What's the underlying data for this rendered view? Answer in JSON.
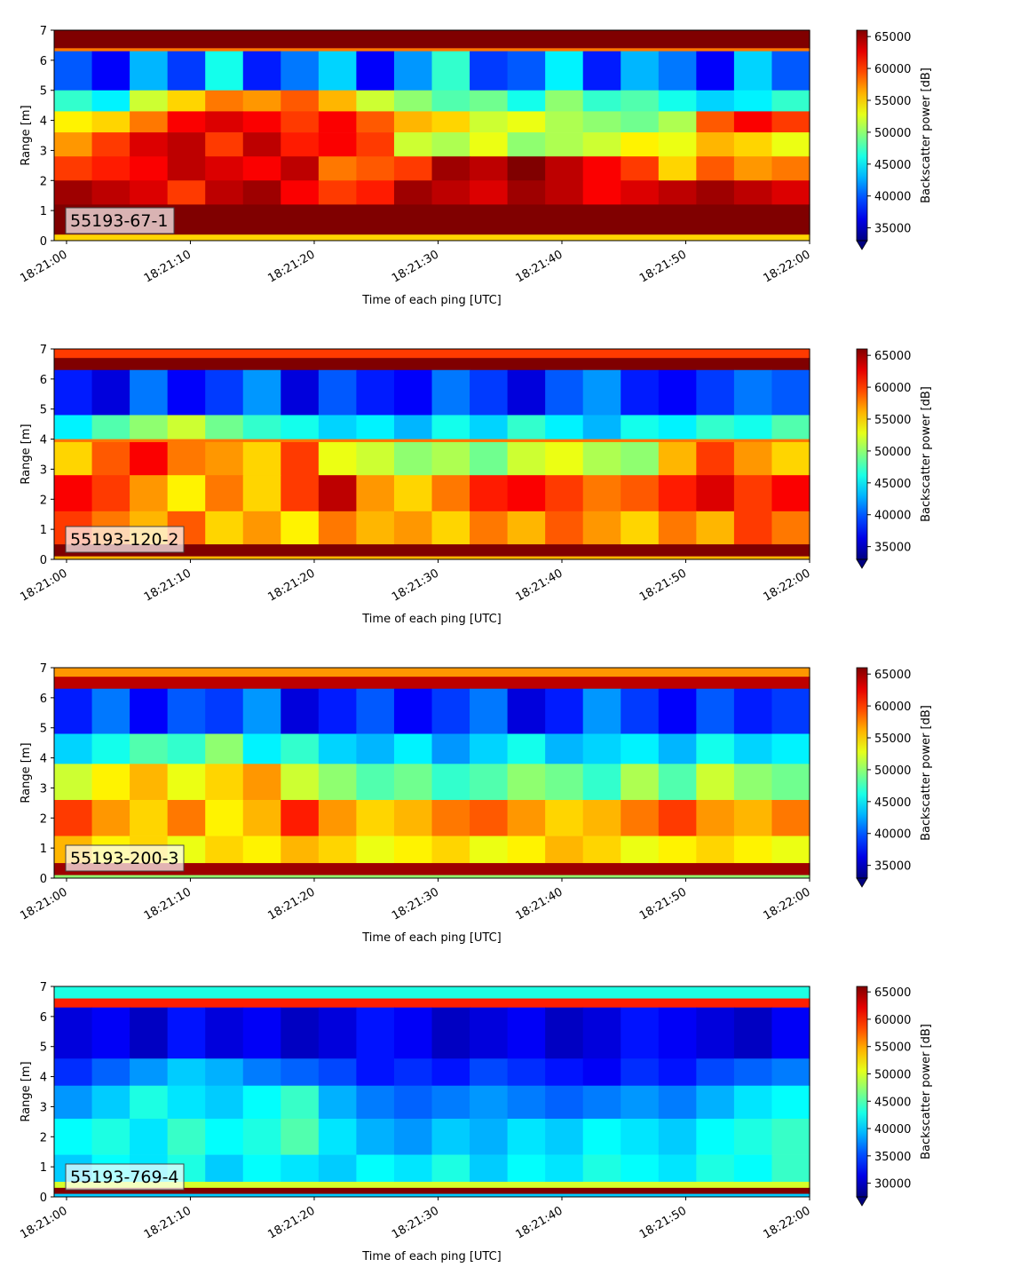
{
  "chart_data": [
    {
      "type": "heatmap",
      "label": "55193-67-1",
      "xlabel": "Time of each ping [UTC]",
      "ylabel": "Range [m]",
      "xticks": [
        "18:21:00",
        "18:21:10",
        "18:21:20",
        "18:21:30",
        "18:21:40",
        "18:21:50",
        "18:22:00"
      ],
      "x_range": [
        "18:20:59",
        "18:22:00"
      ],
      "yticks": [
        0,
        1,
        2,
        3,
        4,
        5,
        6,
        7
      ],
      "ylim": [
        0,
        7
      ],
      "colorbar": {
        "label": "Backscatter power [dB]",
        "ticks": [
          35000,
          40000,
          45000,
          50000,
          55000,
          60000,
          65000
        ],
        "vmin": 33000,
        "vmax": 66000,
        "colormap": "jet"
      },
      "rows": [
        {
          "range": [
            6.4,
            7.0
          ],
          "values": [
            66000
          ]
        },
        {
          "range": [
            6.3,
            6.4
          ],
          "values": [
            58000
          ]
        },
        {
          "range": [
            5.0,
            6.3
          ],
          "values": [
            40000,
            37000,
            43000,
            39000,
            46000,
            38000,
            41000,
            44000,
            37000,
            42000,
            47000,
            39000,
            40000,
            45000,
            38000,
            43000,
            41000,
            37000,
            44000,
            40000
          ]
        },
        {
          "range": [
            4.3,
            5.0
          ],
          "values": [
            47000,
            45000,
            52000,
            55000,
            58000,
            57000,
            59000,
            56000,
            52000,
            50000,
            48000,
            49000,
            46000,
            50000,
            47000,
            48000,
            46000,
            44000,
            45000,
            47000
          ]
        },
        {
          "range": [
            3.6,
            4.3
          ],
          "values": [
            54000,
            55000,
            58000,
            62000,
            63000,
            62000,
            60000,
            62000,
            59000,
            56000,
            55000,
            52000,
            53000,
            51000,
            50000,
            49000,
            51000,
            59000,
            62000,
            60000
          ]
        },
        {
          "range": [
            2.8,
            3.6
          ],
          "values": [
            57000,
            60000,
            63000,
            64000,
            60000,
            64000,
            61000,
            62000,
            60000,
            52000,
            51000,
            53000,
            50000,
            51000,
            52000,
            54000,
            53000,
            56000,
            55000,
            53000
          ]
        },
        {
          "range": [
            2.0,
            2.8
          ],
          "values": [
            60000,
            61000,
            62000,
            64000,
            63000,
            62000,
            64000,
            58000,
            59000,
            60000,
            65000,
            64000,
            66000,
            64000,
            62000,
            60000,
            55000,
            59000,
            57000,
            58000
          ]
        },
        {
          "range": [
            1.2,
            2.0
          ],
          "values": [
            65000,
            64000,
            63000,
            60000,
            64000,
            65000,
            62000,
            60000,
            61000,
            65000,
            64000,
            63000,
            65000,
            64000,
            62000,
            63000,
            64000,
            65000,
            64000,
            63000
          ]
        },
        {
          "range": [
            0.2,
            1.2
          ],
          "values": [
            66000
          ]
        },
        {
          "range": [
            0.0,
            0.2
          ],
          "values": [
            55000
          ]
        }
      ]
    },
    {
      "type": "heatmap",
      "label": "55193-120-2",
      "xlabel": "Time of each ping [UTC]",
      "ylabel": "Range [m]",
      "xticks": [
        "18:21:00",
        "18:21:10",
        "18:21:20",
        "18:21:30",
        "18:21:40",
        "18:21:50",
        "18:22:00"
      ],
      "x_range": [
        "18:20:59",
        "18:22:00"
      ],
      "yticks": [
        0,
        1,
        2,
        3,
        4,
        5,
        6,
        7
      ],
      "ylim": [
        0,
        7
      ],
      "colorbar": {
        "label": "Backscatter power [dB]",
        "ticks": [
          35000,
          40000,
          45000,
          50000,
          55000,
          60000,
          65000
        ],
        "vmin": 33000,
        "vmax": 66000,
        "colormap": "jet"
      },
      "rows": [
        {
          "range": [
            6.7,
            7.0
          ],
          "values": [
            60000
          ]
        },
        {
          "range": [
            6.3,
            6.7
          ],
          "values": [
            66000
          ]
        },
        {
          "range": [
            4.8,
            6.3
          ],
          "values": [
            38000,
            36000,
            41000,
            37000,
            39000,
            42000,
            36000,
            40000,
            38000,
            37000,
            41000,
            39000,
            36000,
            40000,
            42000,
            38000,
            37000,
            39000,
            41000,
            40000
          ]
        },
        {
          "range": [
            4.0,
            4.8
          ],
          "values": [
            45000,
            48000,
            50000,
            52000,
            49000,
            47000,
            46000,
            44000,
            45000,
            43000,
            46000,
            44000,
            47000,
            45000,
            43000,
            46000,
            45000,
            47000,
            46000,
            48000
          ]
        },
        {
          "range": [
            3.9,
            4.0
          ],
          "values": [
            58000
          ]
        },
        {
          "range": [
            2.8,
            3.9
          ],
          "values": [
            55000,
            59000,
            62000,
            58000,
            57000,
            55000,
            60000,
            53000,
            52000,
            50000,
            51000,
            49000,
            52000,
            53000,
            51000,
            50000,
            56000,
            60000,
            57000,
            55000
          ]
        },
        {
          "range": [
            1.6,
            2.8
          ],
          "values": [
            62000,
            60000,
            57000,
            54000,
            58000,
            55000,
            60000,
            64000,
            57000,
            55000,
            58000,
            61000,
            62000,
            60000,
            58000,
            59000,
            61000,
            63000,
            60000,
            62000
          ]
        },
        {
          "range": [
            0.5,
            1.6
          ],
          "values": [
            60000,
            58000,
            56000,
            59000,
            55000,
            57000,
            54000,
            58000,
            56000,
            57000,
            55000,
            58000,
            56000,
            59000,
            57000,
            55000,
            58000,
            56000,
            60000,
            58000
          ]
        },
        {
          "range": [
            0.1,
            0.5
          ],
          "values": [
            66000
          ]
        },
        {
          "range": [
            0.0,
            0.1
          ],
          "values": [
            56000
          ]
        }
      ]
    },
    {
      "type": "heatmap",
      "label": "55193-200-3",
      "xlabel": "Time of each ping [UTC]",
      "ylabel": "Range [m]",
      "xticks": [
        "18:21:00",
        "18:21:10",
        "18:21:20",
        "18:21:30",
        "18:21:40",
        "18:21:50",
        "18:22:00"
      ],
      "x_range": [
        "18:20:59",
        "18:22:00"
      ],
      "yticks": [
        0,
        1,
        2,
        3,
        4,
        5,
        6,
        7
      ],
      "ylim": [
        0,
        7
      ],
      "colorbar": {
        "label": "Backscatter power [dB]",
        "ticks": [
          35000,
          40000,
          45000,
          50000,
          55000,
          60000,
          65000
        ],
        "vmin": 33000,
        "vmax": 66000,
        "colormap": "jet"
      },
      "rows": [
        {
          "range": [
            6.7,
            7.0
          ],
          "values": [
            57000
          ]
        },
        {
          "range": [
            6.3,
            6.7
          ],
          "values": [
            64000
          ]
        },
        {
          "range": [
            4.8,
            6.3
          ],
          "values": [
            38000,
            41000,
            37000,
            40000,
            39000,
            42000,
            36000,
            38000,
            40000,
            37000,
            39000,
            41000,
            36000,
            38000,
            42000,
            39000,
            37000,
            40000,
            38000,
            39000
          ]
        },
        {
          "range": [
            3.8,
            4.8
          ],
          "values": [
            44000,
            46000,
            48000,
            47000,
            50000,
            45000,
            47000,
            44000,
            43000,
            45000,
            42000,
            44000,
            46000,
            43000,
            44000,
            45000,
            43000,
            46000,
            44000,
            45000
          ]
        },
        {
          "range": [
            2.6,
            3.8
          ],
          "values": [
            52000,
            54000,
            56000,
            53000,
            55000,
            57000,
            52000,
            50000,
            48000,
            49000,
            47000,
            48000,
            50000,
            49000,
            47000,
            51000,
            48000,
            52000,
            50000,
            49000
          ]
        },
        {
          "range": [
            1.4,
            2.6
          ],
          "values": [
            60000,
            57000,
            55000,
            58000,
            54000,
            56000,
            61000,
            57000,
            55000,
            56000,
            58000,
            59000,
            57000,
            55000,
            56000,
            58000,
            60000,
            57000,
            56000,
            58000
          ]
        },
        {
          "range": [
            0.5,
            1.4
          ],
          "values": [
            56000,
            54000,
            55000,
            53000,
            55000,
            54000,
            56000,
            55000,
            53000,
            54000,
            55000,
            53000,
            54000,
            56000,
            55000,
            53000,
            54000,
            55000,
            54000,
            53000
          ]
        },
        {
          "range": [
            0.1,
            0.5
          ],
          "values": [
            65000
          ]
        },
        {
          "range": [
            0.0,
            0.1
          ],
          "values": [
            50000
          ]
        }
      ]
    },
    {
      "type": "heatmap",
      "label": "55193-769-4",
      "xlabel": "Time of each ping [UTC]",
      "ylabel": "Range [m]",
      "xticks": [
        "18:21:00",
        "18:21:10",
        "18:21:20",
        "18:21:30",
        "18:21:40",
        "18:21:50",
        "18:22:00"
      ],
      "x_range": [
        "18:20:59",
        "18:22:00"
      ],
      "yticks": [
        0,
        1,
        2,
        3,
        4,
        5,
        6,
        7
      ],
      "ylim": [
        0,
        7
      ],
      "colorbar": {
        "label": "Backscatter power [dB]",
        "ticks": [
          30000,
          35000,
          40000,
          45000,
          50000,
          55000,
          60000,
          65000
        ],
        "vmin": 27500,
        "vmax": 66000,
        "colormap": "jet"
      },
      "rows": [
        {
          "range": [
            6.6,
            7.0
          ],
          "values": [
            43000
          ]
        },
        {
          "range": [
            6.3,
            6.6
          ],
          "values": [
            60000
          ]
        },
        {
          "range": [
            4.6,
            6.3
          ],
          "values": [
            31000,
            32000,
            30000,
            33000,
            31000,
            32000,
            30000,
            31000,
            33000,
            32000,
            30000,
            31000,
            32000,
            30000,
            31000,
            33000,
            32000,
            31000,
            30000,
            32000
          ]
        },
        {
          "range": [
            3.7,
            4.6
          ],
          "values": [
            34000,
            36000,
            38000,
            40000,
            39000,
            37000,
            36000,
            35000,
            33000,
            34000,
            33000,
            35000,
            34000,
            33000,
            32000,
            34000,
            33000,
            35000,
            36000,
            37000
          ]
        },
        {
          "range": [
            2.6,
            3.7
          ],
          "values": [
            38000,
            40000,
            43000,
            41000,
            40000,
            42000,
            44000,
            39000,
            37000,
            36000,
            37000,
            38000,
            37000,
            36000,
            37000,
            38000,
            37000,
            39000,
            41000,
            42000
          ]
        },
        {
          "range": [
            1.4,
            2.6
          ],
          "values": [
            42000,
            43000,
            41000,
            44000,
            42000,
            43000,
            45000,
            41000,
            39000,
            38000,
            40000,
            39000,
            41000,
            40000,
            42000,
            41000,
            40000,
            42000,
            43000,
            44000
          ]
        },
        {
          "range": [
            0.5,
            1.4
          ],
          "values": [
            40000,
            42000,
            41000,
            43000,
            40000,
            42000,
            41000,
            40000,
            42000,
            41000,
            43000,
            40000,
            42000,
            41000,
            43000,
            42000,
            41000,
            43000,
            42000,
            44000
          ]
        },
        {
          "range": [
            0.3,
            0.5
          ],
          "values": [
            50000
          ]
        },
        {
          "range": [
            0.1,
            0.3
          ],
          "values": [
            66000
          ]
        },
        {
          "range": [
            0.0,
            0.1
          ],
          "values": [
            40000
          ]
        }
      ]
    }
  ]
}
